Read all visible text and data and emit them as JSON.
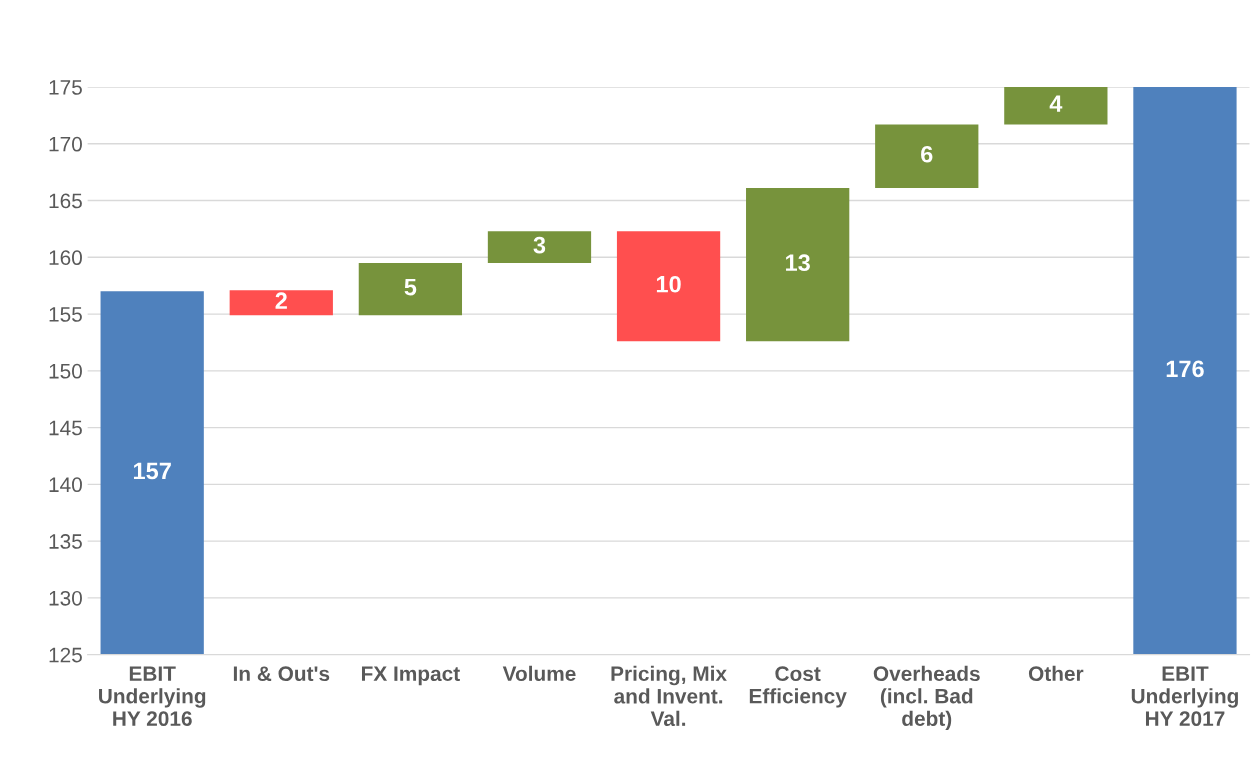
{
  "chart_data": {
    "type": "bar",
    "categories": [
      "EBIT\nUnderlying\nHY 2016",
      "In & Out's",
      "FX Impact",
      "Volume",
      "Pricing, Mix\nand Invent.\nVal.",
      "Cost\nEfficiency",
      "Overheads\n(incl. Bad\ndebt)",
      "Other",
      "EBIT\nUnderlying\nHY 2017"
    ],
    "values": [
      157,
      -2.2,
      4.6,
      2.8,
      -9.7,
      13.5,
      5.6,
      4.1,
      176
    ],
    "base": [
      0,
      157.1,
      154.9,
      159.5,
      162.3,
      152.6,
      166.1,
      171.7,
      0
    ],
    "colors": [
      "#4f81bd",
      "#ff4f4f",
      "#77933c",
      "#77933c",
      "#ff4f4f",
      "#77933c",
      "#77933c",
      "#77933c",
      "#4f81bd"
    ],
    "value_labels": [
      "157",
      "2",
      "5",
      "3",
      "10",
      "13",
      "6",
      "4",
      "176"
    ],
    "ylim": [
      125,
      175
    ],
    "yticks": [
      125,
      130,
      135,
      140,
      145,
      150,
      155,
      160,
      165,
      170,
      175
    ],
    "grid": "y"
  }
}
